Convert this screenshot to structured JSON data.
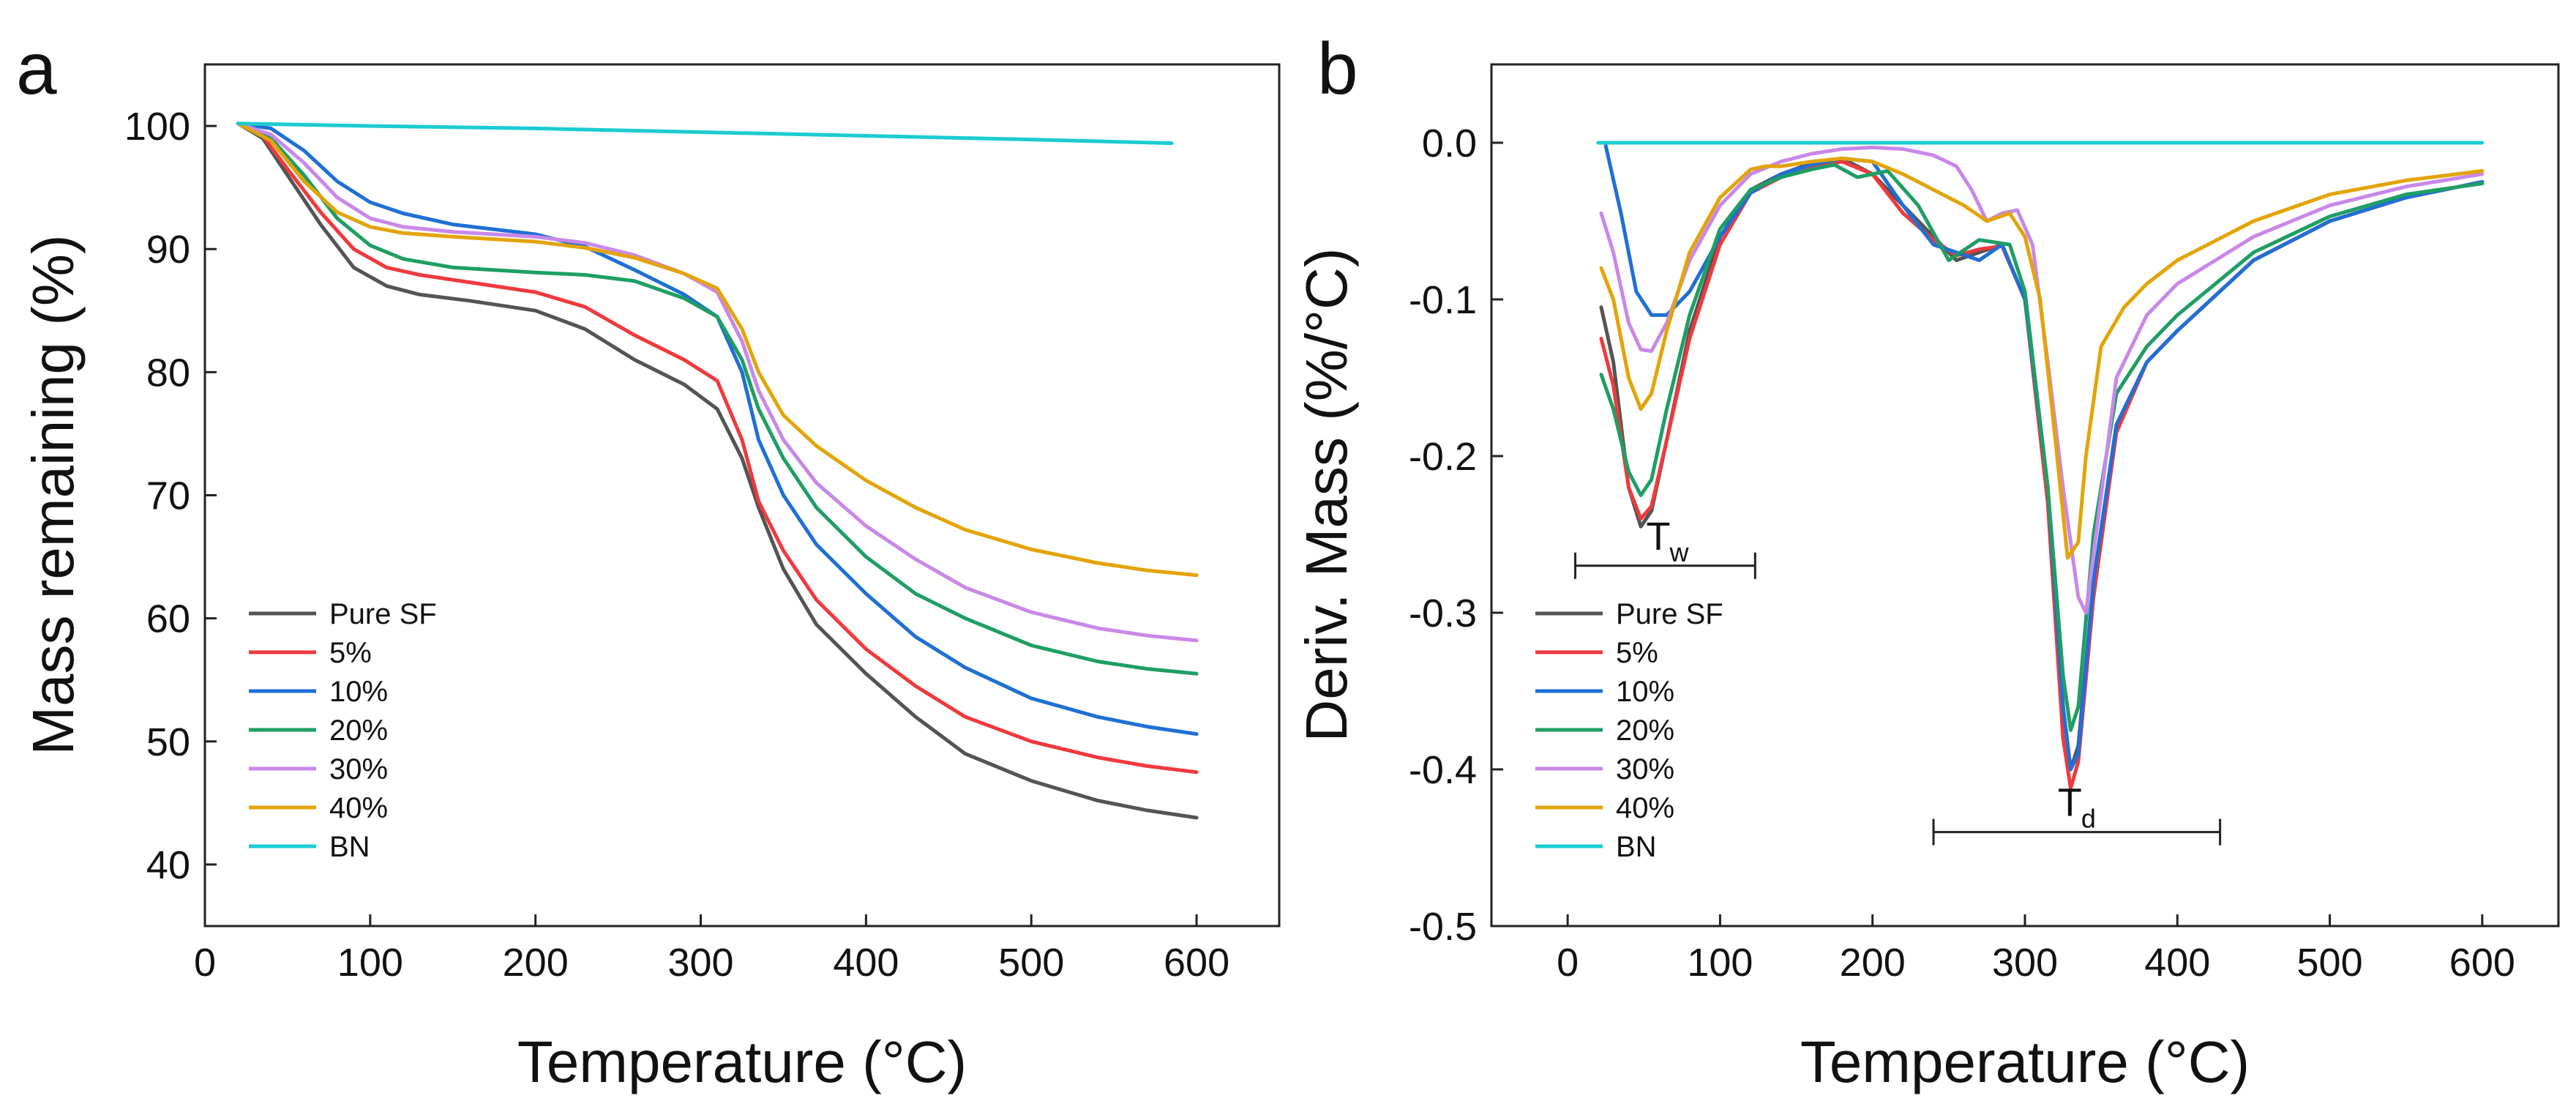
{
  "series_names": [
    "Pure SF",
    "5%",
    "10%",
    "20%",
    "30%",
    "40%",
    "BN"
  ],
  "colors": {
    "Pure SF": "#545454",
    "5%": "#f0393d",
    "10%": "#1f6fd6",
    "20%": "#1e9e63",
    "30%": "#c988e8",
    "40%": "#e3a408",
    "BN": "#1ccbd2"
  },
  "chart_data": [
    {
      "panel": "a",
      "type": "line",
      "xlabel": "Temperature (°C)",
      "ylabel": "Mass remaining (%)",
      "xlim": [
        0,
        650
      ],
      "ylim": [
        35,
        105
      ],
      "xticks": [
        0,
        100,
        200,
        300,
        400,
        500,
        600
      ],
      "yticks": [
        40,
        50,
        60,
        70,
        80,
        90,
        100
      ],
      "legend": "bottom-left",
      "series": [
        {
          "name": "Pure SF",
          "x": [
            20,
            35,
            50,
            70,
            90,
            110,
            130,
            160,
            200,
            230,
            260,
            290,
            310,
            325,
            335,
            350,
            370,
            400,
            430,
            460,
            500,
            540,
            570,
            600
          ],
          "values": [
            100.2,
            99,
            96,
            92,
            88.5,
            87,
            86.3,
            85.8,
            85,
            83.5,
            81,
            79,
            77,
            73,
            69,
            64,
            59.5,
            55.5,
            52,
            49,
            46.8,
            45.2,
            44.4,
            43.8
          ]
        },
        {
          "name": "5%",
          "x": [
            20,
            35,
            50,
            70,
            90,
            110,
            130,
            160,
            200,
            230,
            260,
            290,
            310,
            325,
            335,
            350,
            370,
            400,
            430,
            460,
            500,
            540,
            570,
            600
          ],
          "values": [
            100.2,
            99.2,
            96.5,
            93,
            90,
            88.5,
            87.9,
            87.3,
            86.5,
            85.3,
            83,
            81,
            79.3,
            74.5,
            69.5,
            65.5,
            61.5,
            57.5,
            54.5,
            52,
            50,
            48.7,
            48,
            47.5
          ]
        },
        {
          "name": "10%",
          "x": [
            20,
            40,
            60,
            80,
            100,
            120,
            150,
            200,
            230,
            260,
            290,
            310,
            325,
            335,
            350,
            370,
            400,
            430,
            460,
            500,
            540,
            570,
            600
          ],
          "values": [
            100.2,
            99.8,
            98,
            95.5,
            93.8,
            92.9,
            92,
            91.2,
            90.2,
            88.3,
            86.3,
            84.5,
            80,
            74.5,
            70,
            66,
            62,
            58.5,
            56,
            53.5,
            52,
            51.2,
            50.6
          ]
        },
        {
          "name": "20%",
          "x": [
            20,
            40,
            60,
            80,
            100,
            120,
            150,
            200,
            230,
            260,
            290,
            310,
            325,
            335,
            350,
            370,
            400,
            430,
            460,
            500,
            540,
            570,
            600
          ],
          "values": [
            100.2,
            99,
            96,
            92.5,
            90.3,
            89.2,
            88.5,
            88.1,
            87.9,
            87.4,
            86,
            84.5,
            81,
            77,
            73,
            69,
            65,
            62,
            60,
            57.8,
            56.5,
            55.9,
            55.5
          ]
        },
        {
          "name": "30%",
          "x": [
            20,
            40,
            60,
            80,
            100,
            120,
            150,
            200,
            230,
            260,
            290,
            310,
            325,
            335,
            350,
            370,
            400,
            430,
            460,
            500,
            540,
            570,
            600
          ],
          "values": [
            100.2,
            99.3,
            97,
            94.2,
            92.5,
            91.8,
            91.4,
            91,
            90.5,
            89.5,
            88,
            86.5,
            82.5,
            78.5,
            74.5,
            71,
            67.5,
            64.8,
            62.5,
            60.5,
            59.2,
            58.6,
            58.2
          ]
        },
        {
          "name": "40%",
          "x": [
            20,
            40,
            60,
            80,
            100,
            120,
            150,
            200,
            230,
            260,
            290,
            310,
            325,
            335,
            350,
            370,
            400,
            430,
            460,
            500,
            540,
            570,
            600
          ],
          "values": [
            100.2,
            98.8,
            95.5,
            93,
            91.8,
            91.3,
            91,
            90.6,
            90.1,
            89.3,
            88,
            86.8,
            83.5,
            80,
            76.5,
            74,
            71.2,
            69,
            67.2,
            65.6,
            64.5,
            63.9,
            63.5
          ]
        },
        {
          "name": "BN",
          "x": [
            20,
            100,
            200,
            300,
            400,
            500,
            585
          ],
          "values": [
            100.2,
            100.0,
            99.8,
            99.5,
            99.2,
            98.9,
            98.6
          ]
        }
      ]
    },
    {
      "panel": "b",
      "type": "line",
      "xlabel": "Temperature (°C)",
      "ylabel": "Deriv. Mass (%/°C)",
      "xlim": [
        -50,
        650
      ],
      "ylim": [
        -0.5,
        0.05
      ],
      "xticks": [
        0,
        100,
        200,
        300,
        400,
        500,
        600
      ],
      "yticks": [
        0.0,
        -0.1,
        -0.2,
        -0.3,
        -0.4,
        -0.5
      ],
      "ytick_labels": [
        "0.0",
        "-0.1",
        "-0.2",
        "-0.3",
        "-0.4",
        "-0.5"
      ],
      "legend": "bottom-left",
      "annotations": [
        {
          "label": "T",
          "sub": "w",
          "x_start": 5,
          "x_end": 123,
          "y": -0.27
        },
        {
          "label": "T",
          "sub": "d",
          "x_start": 240,
          "x_end": 428,
          "y": -0.44
        }
      ],
      "series": [
        {
          "name": "Pure SF",
          "x": [
            22,
            30,
            40,
            48,
            55,
            65,
            80,
            100,
            120,
            140,
            160,
            180,
            200,
            220,
            240,
            255,
            270,
            285,
            300,
            315,
            325,
            330,
            335,
            345,
            360,
            380,
            400,
            450,
            500,
            550,
            600
          ],
          "values": [
            -0.105,
            -0.14,
            -0.22,
            -0.245,
            -0.235,
            -0.19,
            -0.12,
            -0.06,
            -0.03,
            -0.02,
            -0.013,
            -0.01,
            -0.02,
            -0.04,
            -0.06,
            -0.075,
            -0.07,
            -0.065,
            -0.1,
            -0.22,
            -0.36,
            -0.4,
            -0.385,
            -0.28,
            -0.18,
            -0.14,
            -0.12,
            -0.075,
            -0.05,
            -0.035,
            -0.025
          ]
        },
        {
          "name": "5%",
          "x": [
            22,
            30,
            40,
            48,
            55,
            65,
            80,
            100,
            120,
            140,
            160,
            180,
            200,
            220,
            240,
            255,
            270,
            285,
            300,
            315,
            325,
            330,
            335,
            345,
            360,
            380,
            400,
            450,
            500,
            550,
            600
          ],
          "values": [
            -0.125,
            -0.155,
            -0.22,
            -0.24,
            -0.232,
            -0.19,
            -0.125,
            -0.065,
            -0.032,
            -0.022,
            -0.016,
            -0.012,
            -0.02,
            -0.045,
            -0.062,
            -0.072,
            -0.068,
            -0.066,
            -0.1,
            -0.23,
            -0.38,
            -0.412,
            -0.395,
            -0.29,
            -0.185,
            -0.14,
            -0.12,
            -0.075,
            -0.05,
            -0.035,
            -0.025
          ]
        },
        {
          "name": "10%",
          "x": [
            25,
            35,
            45,
            55,
            65,
            80,
            100,
            120,
            140,
            160,
            180,
            200,
            220,
            240,
            255,
            270,
            285,
            300,
            315,
            325,
            330,
            335,
            345,
            360,
            380,
            400,
            450,
            500,
            550,
            600
          ],
          "values": [
            -0.002,
            -0.045,
            -0.095,
            -0.11,
            -0.11,
            -0.095,
            -0.06,
            -0.032,
            -0.02,
            -0.014,
            -0.01,
            -0.012,
            -0.04,
            -0.065,
            -0.07,
            -0.075,
            -0.065,
            -0.1,
            -0.22,
            -0.36,
            -0.4,
            -0.39,
            -0.28,
            -0.18,
            -0.14,
            -0.12,
            -0.075,
            -0.05,
            -0.035,
            -0.025
          ]
        },
        {
          "name": "20%",
          "x": [
            22,
            30,
            40,
            48,
            55,
            65,
            80,
            100,
            120,
            140,
            160,
            175,
            190,
            210,
            230,
            250,
            270,
            290,
            300,
            315,
            325,
            330,
            335,
            345,
            360,
            380,
            400,
            450,
            500,
            550,
            600
          ],
          "values": [
            -0.148,
            -0.17,
            -0.21,
            -0.225,
            -0.215,
            -0.17,
            -0.11,
            -0.055,
            -0.03,
            -0.022,
            -0.017,
            -0.014,
            -0.022,
            -0.018,
            -0.04,
            -0.075,
            -0.062,
            -0.065,
            -0.095,
            -0.22,
            -0.34,
            -0.375,
            -0.36,
            -0.25,
            -0.16,
            -0.13,
            -0.11,
            -0.07,
            -0.047,
            -0.033,
            -0.026
          ]
        },
        {
          "name": "30%",
          "x": [
            22,
            30,
            40,
            48,
            55,
            65,
            80,
            100,
            120,
            140,
            160,
            180,
            200,
            220,
            240,
            255,
            265,
            275,
            285,
            295,
            305,
            315,
            325,
            335,
            340,
            348,
            360,
            380,
            400,
            450,
            500,
            550,
            600
          ],
          "values": [
            -0.045,
            -0.07,
            -0.115,
            -0.132,
            -0.133,
            -0.115,
            -0.075,
            -0.04,
            -0.02,
            -0.012,
            -0.007,
            -0.004,
            -0.003,
            -0.004,
            -0.008,
            -0.015,
            -0.03,
            -0.05,
            -0.045,
            -0.043,
            -0.065,
            -0.14,
            -0.22,
            -0.29,
            -0.3,
            -0.24,
            -0.15,
            -0.11,
            -0.09,
            -0.06,
            -0.04,
            -0.028,
            -0.02
          ]
        },
        {
          "name": "40%",
          "x": [
            22,
            30,
            40,
            48,
            55,
            65,
            80,
            100,
            120,
            130,
            140,
            160,
            180,
            200,
            220,
            240,
            260,
            275,
            290,
            300,
            310,
            320,
            328,
            335,
            340,
            350,
            365,
            380,
            400,
            450,
            500,
            550,
            600
          ],
          "values": [
            -0.08,
            -0.1,
            -0.15,
            -0.17,
            -0.16,
            -0.12,
            -0.07,
            -0.035,
            -0.017,
            -0.015,
            -0.015,
            -0.012,
            -0.01,
            -0.012,
            -0.02,
            -0.03,
            -0.04,
            -0.05,
            -0.045,
            -0.06,
            -0.1,
            -0.19,
            -0.265,
            -0.255,
            -0.2,
            -0.13,
            -0.105,
            -0.09,
            -0.075,
            -0.05,
            -0.033,
            -0.024,
            -0.018
          ]
        },
        {
          "name": "BN",
          "x": [
            20,
            100,
            200,
            300,
            400,
            500,
            600
          ],
          "values": [
            0.0,
            0.0,
            0.0,
            0.0,
            0.0,
            0.0,
            0.0
          ]
        }
      ]
    }
  ]
}
